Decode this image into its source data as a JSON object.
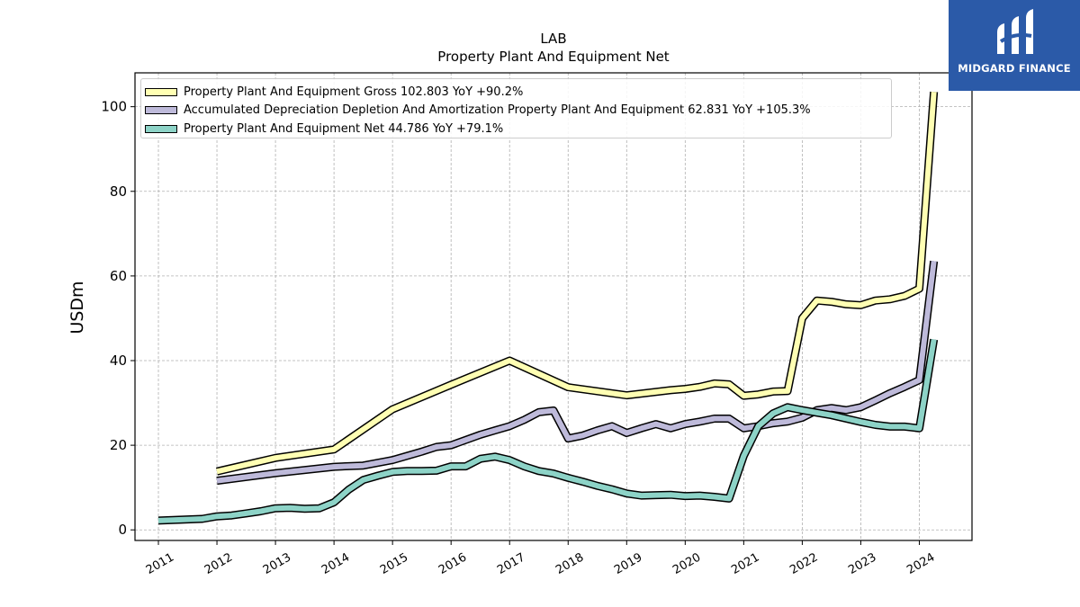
{
  "branding": {
    "logo_text": "MIDGARD FINANCE",
    "logo_bg": "#2b5aa8"
  },
  "chart_data": {
    "type": "line",
    "title": "LAB",
    "subtitle": "Property Plant And Equipment Net",
    "ylabel": "USDm",
    "xlabel": "",
    "xlim": [
      2010.6,
      2024.9
    ],
    "ylim": [
      -2.5,
      108
    ],
    "yticks": [
      0,
      20,
      40,
      60,
      80,
      100
    ],
    "xticks": [
      "2011",
      "2012",
      "2013",
      "2014",
      "2015",
      "2016",
      "2017",
      "2018",
      "2019",
      "2020",
      "2021",
      "2022",
      "2023",
      "2024"
    ],
    "grid": true,
    "legend_position": "top-left",
    "series": [
      {
        "name": "Property Plant And Equipment Gross",
        "legend_label": "Property Plant And Equipment Gross  102.803 YoY +90.2%",
        "color": "#ffffb3",
        "points": [
          [
            2012.0,
            13.8
          ],
          [
            2013.0,
            17.0
          ],
          [
            2014.0,
            19.0
          ],
          [
            2015.0,
            28.5
          ],
          [
            2016.0,
            34.3
          ],
          [
            2017.0,
            40.0
          ],
          [
            2018.0,
            33.7
          ],
          [
            2019.0,
            31.8
          ],
          [
            2019.75,
            33.0
          ],
          [
            2020.0,
            33.3
          ],
          [
            2020.25,
            33.8
          ],
          [
            2020.5,
            34.6
          ],
          [
            2020.75,
            34.4
          ],
          [
            2021.0,
            31.7
          ],
          [
            2021.25,
            32.0
          ],
          [
            2021.5,
            32.7
          ],
          [
            2021.75,
            32.8
          ],
          [
            2022.0,
            50.0
          ],
          [
            2022.25,
            54.2
          ],
          [
            2022.5,
            53.9
          ],
          [
            2022.75,
            53.3
          ],
          [
            2023.0,
            53.1
          ],
          [
            2023.25,
            54.2
          ],
          [
            2023.5,
            54.5
          ],
          [
            2023.75,
            55.3
          ],
          [
            2024.0,
            57.0
          ],
          [
            2024.25,
            103.5
          ]
        ]
      },
      {
        "name": "Accumulated Depreciation Depletion And Amortization Property Plant And Equipment",
        "legend_label": "Accumulated Depreciation Depletion And Amortization Property Plant And Equipment  62.831 YoY +105.3%",
        "color": "#bebada",
        "points": [
          [
            2012.0,
            11.6
          ],
          [
            2013.0,
            13.4
          ],
          [
            2014.0,
            14.9
          ],
          [
            2014.5,
            15.2
          ],
          [
            2015.0,
            16.5
          ],
          [
            2015.5,
            18.5
          ],
          [
            2015.75,
            19.6
          ],
          [
            2016.0,
            20.0
          ],
          [
            2016.5,
            22.5
          ],
          [
            2016.75,
            23.5
          ],
          [
            2017.0,
            24.5
          ],
          [
            2017.25,
            26.0
          ],
          [
            2017.5,
            27.8
          ],
          [
            2017.75,
            28.2
          ],
          [
            2018.0,
            21.6
          ],
          [
            2018.25,
            22.3
          ],
          [
            2018.5,
            23.5
          ],
          [
            2018.75,
            24.5
          ],
          [
            2019.0,
            22.9
          ],
          [
            2019.25,
            24.0
          ],
          [
            2019.5,
            25.0
          ],
          [
            2019.75,
            24.0
          ],
          [
            2020.0,
            25.0
          ],
          [
            2020.25,
            25.6
          ],
          [
            2020.5,
            26.3
          ],
          [
            2020.75,
            26.3
          ],
          [
            2021.0,
            24.0
          ],
          [
            2021.25,
            24.5
          ],
          [
            2021.5,
            25.2
          ],
          [
            2021.75,
            25.6
          ],
          [
            2022.0,
            26.5
          ],
          [
            2022.25,
            28.3
          ],
          [
            2022.5,
            28.8
          ],
          [
            2022.75,
            28.3
          ],
          [
            2023.0,
            29.0
          ],
          [
            2023.25,
            30.6
          ],
          [
            2023.5,
            32.3
          ],
          [
            2023.75,
            33.8
          ],
          [
            2024.0,
            35.4
          ],
          [
            2024.25,
            63.5
          ]
        ]
      },
      {
        "name": "Property Plant And Equipment Net",
        "legend_label": "Property Plant And Equipment Net  44.786 YoY +79.1%",
        "color": "#8dd3c7",
        "points": [
          [
            2011.0,
            2.2
          ],
          [
            2011.75,
            2.6
          ],
          [
            2012.0,
            3.2
          ],
          [
            2012.25,
            3.4
          ],
          [
            2012.5,
            3.9
          ],
          [
            2012.75,
            4.4
          ],
          [
            2013.0,
            5.1
          ],
          [
            2013.25,
            5.2
          ],
          [
            2013.5,
            5.0
          ],
          [
            2013.75,
            5.1
          ],
          [
            2014.0,
            6.5
          ],
          [
            2014.25,
            9.5
          ],
          [
            2014.5,
            11.8
          ],
          [
            2014.75,
            12.8
          ],
          [
            2015.0,
            13.7
          ],
          [
            2015.25,
            13.9
          ],
          [
            2015.5,
            13.9
          ],
          [
            2015.75,
            14.0
          ],
          [
            2016.0,
            15.0
          ],
          [
            2016.25,
            15.0
          ],
          [
            2016.5,
            16.8
          ],
          [
            2016.75,
            17.3
          ],
          [
            2017.0,
            16.5
          ],
          [
            2017.25,
            15.0
          ],
          [
            2017.5,
            13.9
          ],
          [
            2017.75,
            13.3
          ],
          [
            2018.0,
            12.3
          ],
          [
            2018.25,
            11.4
          ],
          [
            2018.5,
            10.4
          ],
          [
            2018.75,
            9.6
          ],
          [
            2019.0,
            8.6
          ],
          [
            2019.25,
            8.1
          ],
          [
            2019.5,
            8.2
          ],
          [
            2019.75,
            8.3
          ],
          [
            2020.0,
            8.0
          ],
          [
            2020.25,
            8.1
          ],
          [
            2020.5,
            7.8
          ],
          [
            2020.75,
            7.4
          ],
          [
            2021.0,
            17.5
          ],
          [
            2021.25,
            24.5
          ],
          [
            2021.5,
            27.5
          ],
          [
            2021.75,
            29.0
          ],
          [
            2022.0,
            28.3
          ],
          [
            2022.25,
            27.7
          ],
          [
            2022.5,
            27.1
          ],
          [
            2022.75,
            26.3
          ],
          [
            2023.0,
            25.5
          ],
          [
            2023.25,
            24.8
          ],
          [
            2023.5,
            24.4
          ],
          [
            2023.75,
            24.4
          ],
          [
            2024.0,
            24.0
          ],
          [
            2024.25,
            45.0
          ]
        ]
      }
    ]
  }
}
